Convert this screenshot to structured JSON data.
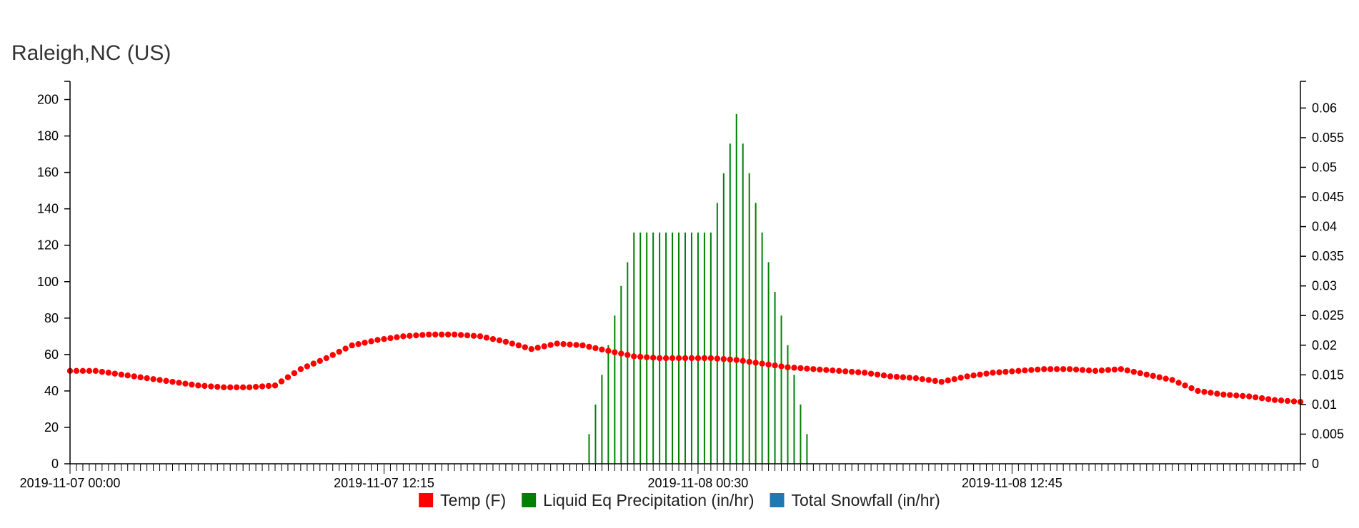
{
  "chart_data": {
    "type": "line",
    "title": "Raleigh,NC (US)",
    "x_tick_labels": [
      "2019-11-07 00:00",
      "2019-11-07 12:15",
      "2019-11-08 00:30",
      "2019-11-08 12:45"
    ],
    "x_tick_label_hours": [
      0,
      12.25,
      24.5,
      36.75
    ],
    "x_range_hours": [
      0,
      48
    ],
    "x_interval_minutes": 15,
    "y_left": {
      "range": [
        0,
        210
      ],
      "ticks": [
        "0",
        "20",
        "40",
        "60",
        "80",
        "100",
        "120",
        "140",
        "160",
        "180",
        "200"
      ]
    },
    "y_right": {
      "range": [
        0,
        0.0645
      ],
      "ticks": [
        "0",
        "0.005",
        "0.01",
        "0.015",
        "0.02",
        "0.025",
        "0.03",
        "0.035",
        "0.04",
        "0.045",
        "0.05",
        "0.055",
        "0.06"
      ]
    },
    "series": [
      {
        "name": "Temp (F)",
        "color": "#ff0000",
        "axis": "left",
        "kind": "points",
        "x_hours": [
          0,
          1,
          2,
          3,
          4,
          5,
          6,
          7,
          8,
          9,
          10,
          11,
          12,
          13,
          14,
          15,
          16,
          17,
          18,
          19,
          20,
          21,
          22,
          23,
          24,
          25,
          26,
          27,
          28,
          29,
          30,
          31,
          32,
          33,
          34,
          35,
          36,
          37,
          38,
          39,
          40,
          41,
          42,
          43,
          44,
          45,
          46,
          47,
          48
        ],
        "values": [
          51,
          51,
          49,
          47,
          45,
          43,
          42,
          42,
          43,
          52,
          58,
          65,
          68,
          70,
          71,
          71,
          70,
          67,
          63,
          66,
          65,
          62,
          59,
          58,
          58,
          58,
          57,
          55,
          53,
          52,
          51,
          50,
          48,
          47,
          45,
          48,
          50,
          51,
          52,
          52,
          51,
          52,
          49,
          46,
          40,
          38,
          37,
          35,
          34
        ]
      },
      {
        "name": "Liquid Eq Precipitation (in/hr)",
        "color": "#008000",
        "axis": "right",
        "kind": "bars",
        "x_hours": [
          20.25,
          20.5,
          20.75,
          21,
          21.25,
          21.5,
          21.75,
          22,
          22.25,
          22.5,
          22.75,
          23,
          23.25,
          23.5,
          23.75,
          24,
          24.25,
          24.5,
          24.75,
          25,
          25.25,
          25.5,
          25.75,
          26,
          26.25,
          26.5,
          26.75,
          27,
          27.25,
          27.5,
          27.75,
          28,
          28.25,
          28.5,
          28.75,
          29
        ],
        "values": [
          0.005,
          0.01,
          0.015,
          0.02,
          0.025,
          0.03,
          0.034,
          0.039,
          0.039,
          0.039,
          0.039,
          0.039,
          0.039,
          0.039,
          0.039,
          0.039,
          0.039,
          0.039,
          0.039,
          0.039,
          0.044,
          0.049,
          0.054,
          0.059,
          0.054,
          0.049,
          0.044,
          0.039,
          0.034,
          0.029,
          0.025,
          0.02,
          0.015,
          0.01,
          0.005,
          0
        ]
      },
      {
        "name": "Total Snowfall (in/hr)",
        "color": "#1f77b4",
        "axis": "right",
        "kind": "bars",
        "x_hours": [],
        "values": []
      }
    ],
    "legend_position": "bottom-center",
    "grid": false
  }
}
